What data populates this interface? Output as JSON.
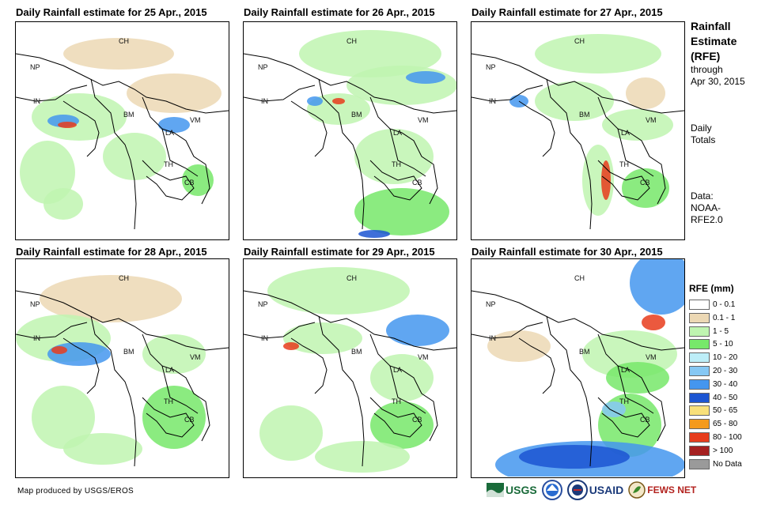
{
  "panels": [
    {
      "title": "Daily Rainfall estimate for 25 Apr., 2015"
    },
    {
      "title": "Daily Rainfall estimate for 26 Apr., 2015"
    },
    {
      "title": "Daily Rainfall estimate for 27 Apr., 2015"
    },
    {
      "title": "Daily Rainfall estimate for 28 Apr., 2015"
    },
    {
      "title": "Daily Rainfall estimate for 29 Apr., 2015"
    },
    {
      "title": "Daily Rainfall estimate for 30 Apr., 2015"
    }
  ],
  "country_labels": [
    "CH",
    "NP",
    "IN",
    "BM",
    "VM",
    "LA",
    "TH",
    "CB"
  ],
  "side": {
    "title_line1": "Rainfall",
    "title_line2": "Estimate",
    "title_line3": "(RFE)",
    "through": "through",
    "date": "Apr 30, 2015",
    "daily": "Daily",
    "totals": "Totals",
    "data_label": "Data:",
    "source1": "NOAA-",
    "source2": "RFE2.0"
  },
  "legend": {
    "title": "RFE (mm)",
    "items": [
      {
        "label": "0 - 0.1",
        "color": "#ffffff"
      },
      {
        "label": "0.1 - 1",
        "color": "#ecd8b4"
      },
      {
        "label": "1 - 5",
        "color": "#bff5b0"
      },
      {
        "label": "5 - 10",
        "color": "#77e86a"
      },
      {
        "label": "10 - 20",
        "color": "#bdeef8"
      },
      {
        "label": "20 - 30",
        "color": "#86c8f4"
      },
      {
        "label": "30 - 40",
        "color": "#4496ef"
      },
      {
        "label": "40 - 50",
        "color": "#1c55d2"
      },
      {
        "label": "50 - 65",
        "color": "#f8e07a"
      },
      {
        "label": "65 - 80",
        "color": "#f49a1c"
      },
      {
        "label": "80 - 100",
        "color": "#e73c1c"
      },
      {
        "label": "> 100",
        "color": "#a52020"
      },
      {
        "label": "No Data",
        "color": "#9a9a9a"
      }
    ]
  },
  "credit": "Map produced by USGS/EROS",
  "logos": {
    "usgs": "USGS",
    "usaid": "USAID",
    "fewsnet": "FEWS NET"
  }
}
